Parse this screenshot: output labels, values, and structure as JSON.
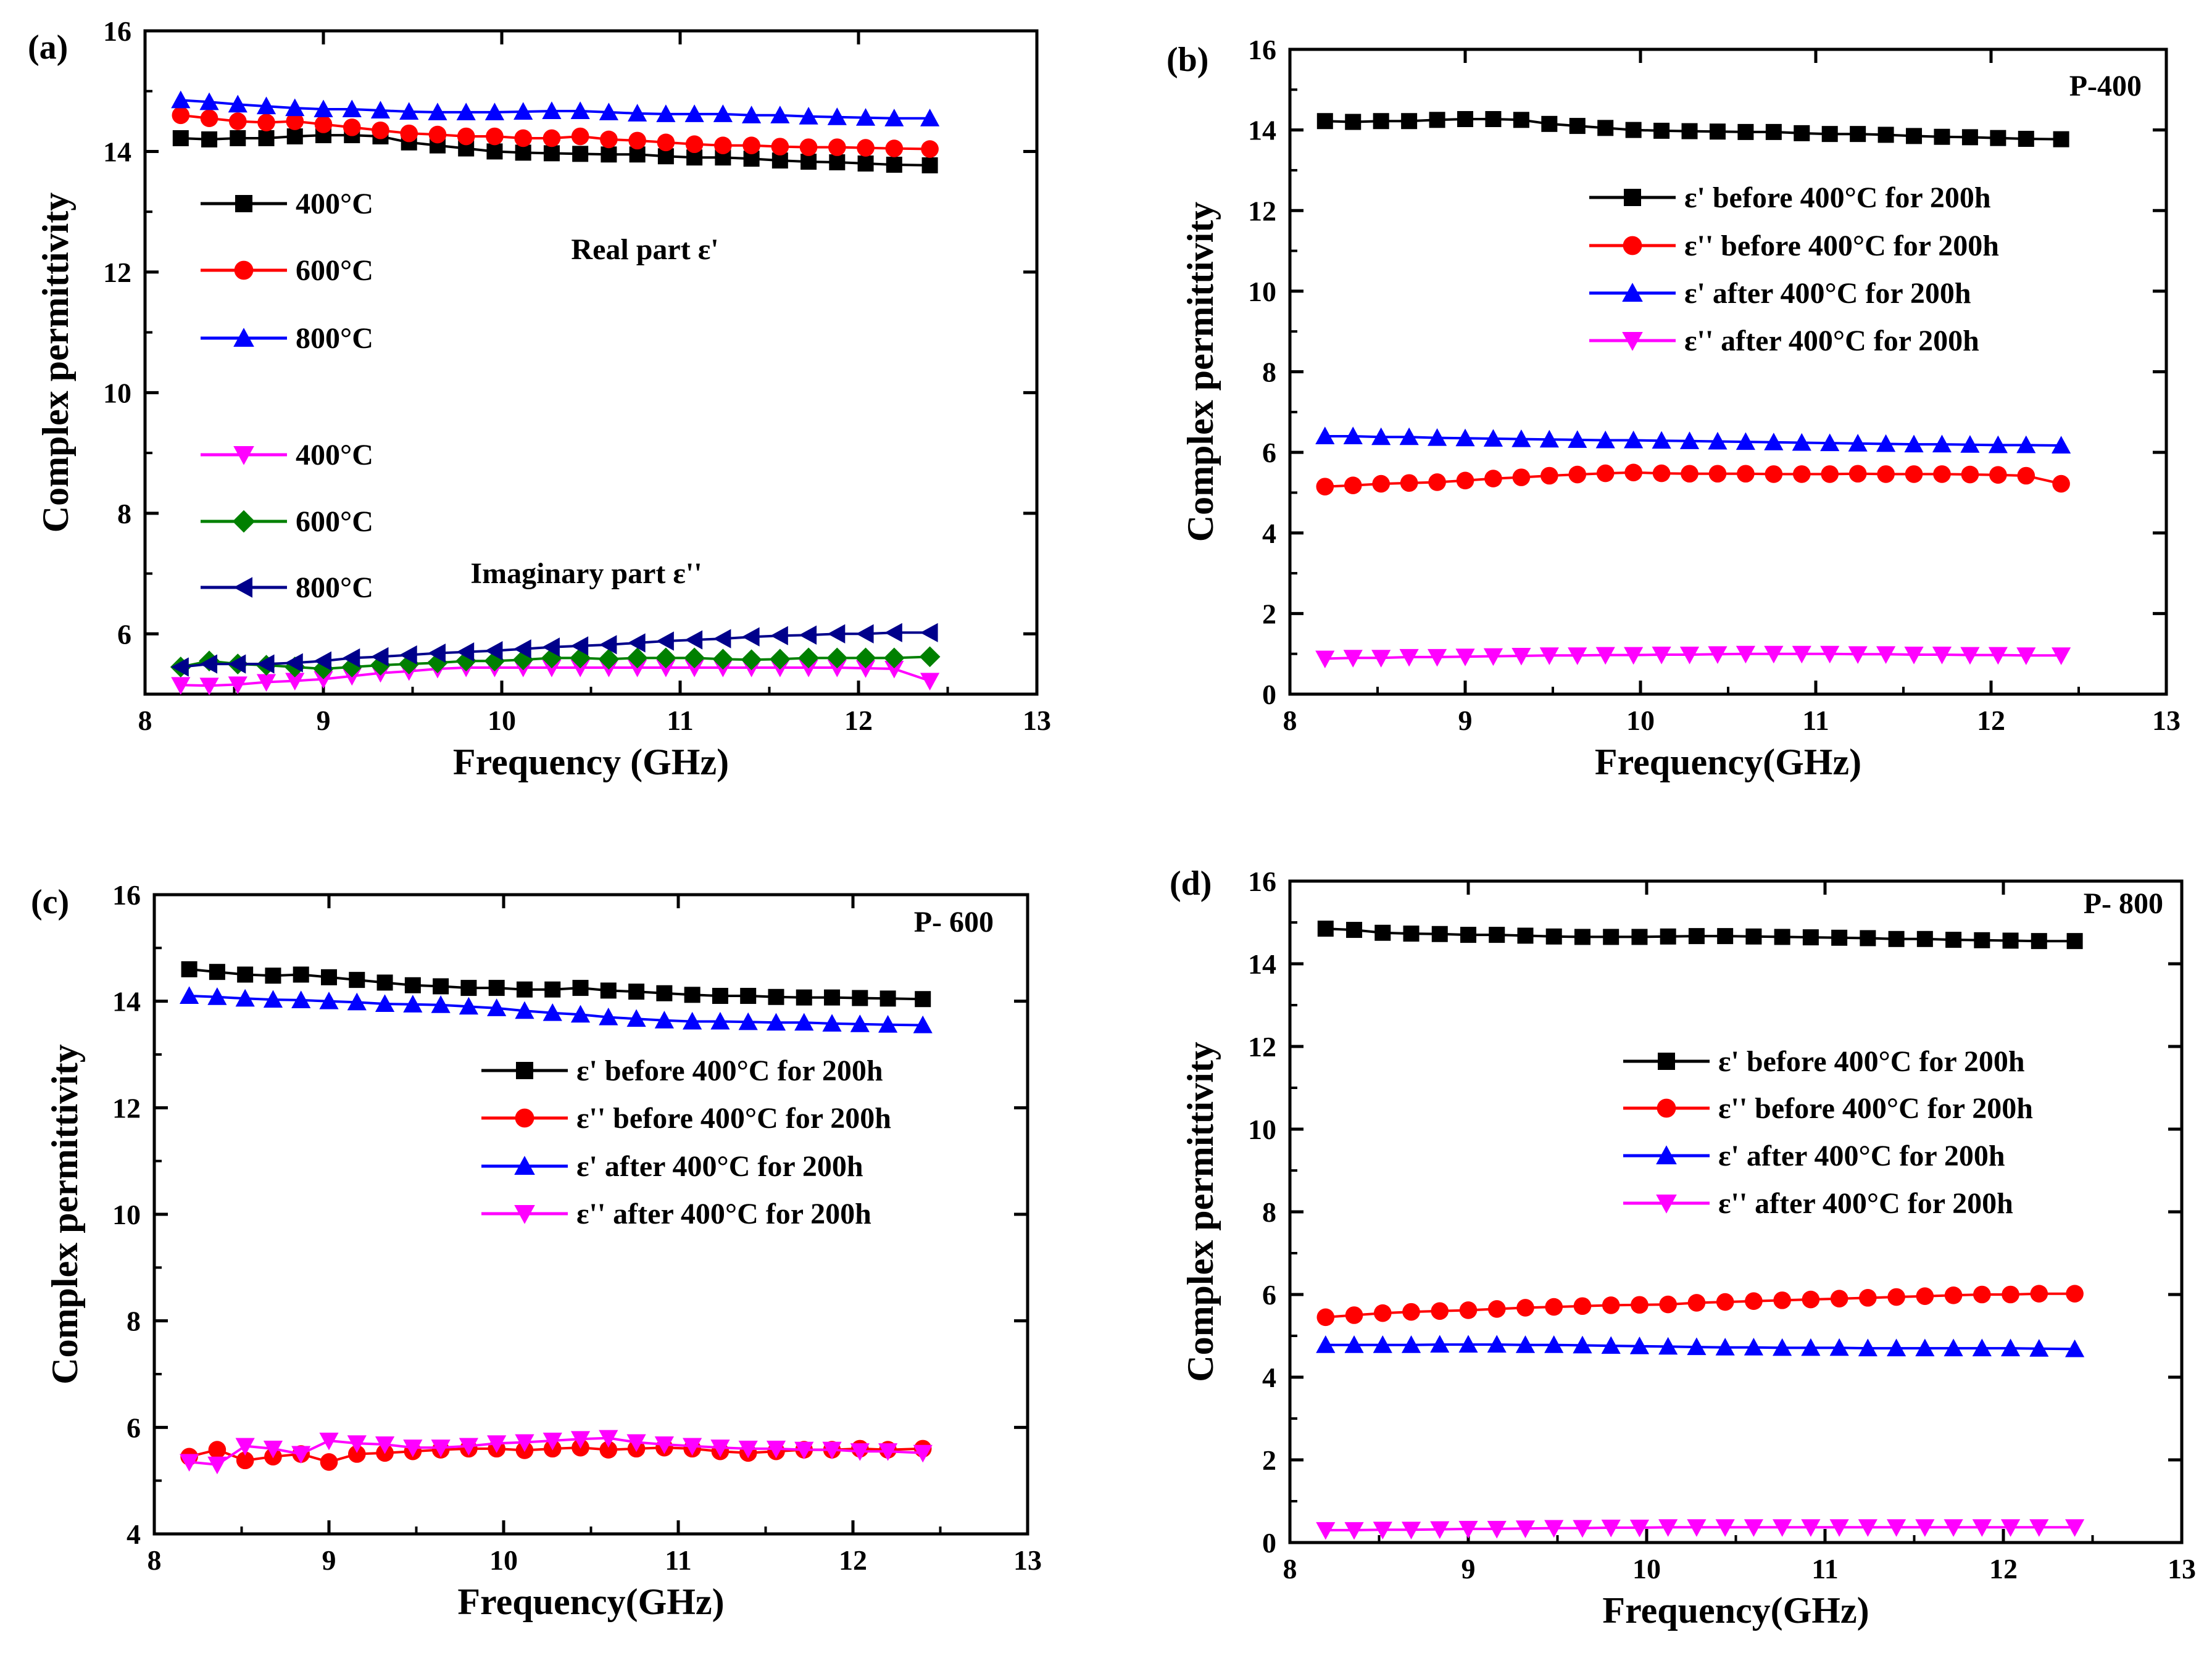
{
  "chart_data": [
    {
      "type": "line",
      "panel": "(a)",
      "xlabel": "Frequency (GHz)",
      "ylabel": "Complex permittivity",
      "xlim": [
        8,
        13
      ],
      "ylim": [
        5,
        16
      ],
      "xticks": [
        8,
        9,
        10,
        11,
        12,
        13
      ],
      "yticks": [
        6,
        8,
        10,
        12,
        14,
        16
      ],
      "annotations": [
        "Real part ε'",
        "Imaginary part ε''"
      ],
      "x": [
        8.2,
        8.36,
        8.52,
        8.68,
        8.84,
        9.0,
        9.16,
        9.32,
        9.48,
        9.64,
        9.8,
        9.96,
        10.12,
        10.28,
        10.44,
        10.6,
        10.76,
        10.92,
        11.08,
        11.24,
        11.4,
        11.56,
        11.72,
        11.88,
        12.04,
        12.2,
        12.4
      ],
      "series": [
        {
          "name": "400°C",
          "color": "#000000",
          "marker": "square",
          "values": [
            14.22,
            14.2,
            14.22,
            14.22,
            14.25,
            14.27,
            14.27,
            14.25,
            14.15,
            14.1,
            14.05,
            14.0,
            13.98,
            13.97,
            13.96,
            13.95,
            13.95,
            13.92,
            13.9,
            13.9,
            13.88,
            13.85,
            13.83,
            13.82,
            13.8,
            13.78,
            13.77
          ]
        },
        {
          "name": "600°C",
          "color": "#ff0000",
          "marker": "circle",
          "values": [
            14.6,
            14.55,
            14.5,
            14.48,
            14.5,
            14.45,
            14.4,
            14.35,
            14.3,
            14.28,
            14.25,
            14.25,
            14.22,
            14.22,
            14.25,
            14.2,
            14.18,
            14.15,
            14.12,
            14.1,
            14.1,
            14.08,
            14.07,
            14.07,
            14.06,
            14.05,
            14.04
          ]
        },
        {
          "name": "800°C",
          "color": "#0000ff",
          "marker": "triangle-up",
          "values": [
            14.85,
            14.82,
            14.78,
            14.75,
            14.72,
            14.7,
            14.7,
            14.68,
            14.66,
            14.65,
            14.65,
            14.65,
            14.66,
            14.67,
            14.67,
            14.65,
            14.63,
            14.62,
            14.62,
            14.62,
            14.6,
            14.6,
            14.58,
            14.57,
            14.56,
            14.55,
            14.55
          ]
        },
        {
          "name": "400°C",
          "color": "#ff00ff",
          "marker": "triangle-down",
          "values": [
            5.15,
            5.14,
            5.16,
            5.2,
            5.22,
            5.25,
            5.3,
            5.35,
            5.38,
            5.42,
            5.44,
            5.44,
            5.44,
            5.44,
            5.44,
            5.44,
            5.44,
            5.44,
            5.44,
            5.44,
            5.44,
            5.44,
            5.44,
            5.44,
            5.43,
            5.42,
            5.22
          ]
        },
        {
          "name": "600°C",
          "color": "#008000",
          "marker": "diamond",
          "values": [
            5.45,
            5.55,
            5.5,
            5.48,
            5.45,
            5.42,
            5.45,
            5.48,
            5.5,
            5.52,
            5.55,
            5.55,
            5.57,
            5.6,
            5.6,
            5.58,
            5.6,
            5.6,
            5.6,
            5.58,
            5.57,
            5.58,
            5.6,
            5.6,
            5.6,
            5.6,
            5.62
          ]
        },
        {
          "name": "800°C",
          "color": "#00008b",
          "marker": "triangle-left",
          "values": [
            5.45,
            5.5,
            5.5,
            5.5,
            5.52,
            5.55,
            5.6,
            5.62,
            5.65,
            5.68,
            5.7,
            5.72,
            5.75,
            5.78,
            5.8,
            5.82,
            5.85,
            5.88,
            5.9,
            5.92,
            5.95,
            5.97,
            5.98,
            6.0,
            6.0,
            6.02,
            6.02
          ]
        }
      ]
    },
    {
      "type": "line",
      "panel": "(b)",
      "xlabel": "Frequency(GHz)",
      "ylabel": "Complex permittivity",
      "xlim": [
        8,
        13
      ],
      "ylim": [
        0,
        16
      ],
      "xticks": [
        8,
        9,
        10,
        11,
        12,
        13
      ],
      "yticks": [
        0,
        2,
        4,
        6,
        8,
        10,
        12,
        14,
        16
      ],
      "annotations": [
        "P-400"
      ],
      "x": [
        8.2,
        8.36,
        8.52,
        8.68,
        8.84,
        9.0,
        9.16,
        9.32,
        9.48,
        9.64,
        9.8,
        9.96,
        10.12,
        10.28,
        10.44,
        10.6,
        10.76,
        10.92,
        11.08,
        11.24,
        11.4,
        11.56,
        11.72,
        11.88,
        12.04,
        12.2,
        12.4
      ],
      "series": [
        {
          "name": "ε' before 400°C for 200h",
          "color": "#000000",
          "marker": "square",
          "values": [
            14.22,
            14.2,
            14.22,
            14.22,
            14.25,
            14.27,
            14.27,
            14.25,
            14.15,
            14.1,
            14.05,
            14.0,
            13.98,
            13.97,
            13.96,
            13.95,
            13.95,
            13.92,
            13.9,
            13.9,
            13.88,
            13.85,
            13.83,
            13.82,
            13.8,
            13.78,
            13.77
          ]
        },
        {
          "name": "ε'' before 400°C for 200h",
          "color": "#ff0000",
          "marker": "circle",
          "values": [
            5.15,
            5.18,
            5.22,
            5.24,
            5.26,
            5.3,
            5.35,
            5.38,
            5.42,
            5.45,
            5.48,
            5.5,
            5.48,
            5.47,
            5.47,
            5.47,
            5.46,
            5.46,
            5.46,
            5.47,
            5.46,
            5.46,
            5.46,
            5.45,
            5.44,
            5.42,
            5.22
          ]
        },
        {
          "name": "ε' after 400°C for 200h",
          "color": "#0000ff",
          "marker": "triangle-up",
          "values": [
            6.4,
            6.4,
            6.38,
            6.38,
            6.36,
            6.35,
            6.34,
            6.33,
            6.32,
            6.31,
            6.3,
            6.3,
            6.29,
            6.28,
            6.27,
            6.26,
            6.25,
            6.24,
            6.23,
            6.22,
            6.21,
            6.2,
            6.2,
            6.19,
            6.18,
            6.18,
            6.17
          ]
        },
        {
          "name": "ε'' after 400°C for 200h",
          "color": "#ff00ff",
          "marker": "triangle-down",
          "values": [
            0.88,
            0.9,
            0.9,
            0.92,
            0.92,
            0.93,
            0.94,
            0.95,
            0.96,
            0.96,
            0.97,
            0.97,
            0.98,
            0.98,
            0.99,
            1.0,
            1.0,
            1.0,
            1.0,
            0.99,
            0.99,
            0.98,
            0.98,
            0.97,
            0.97,
            0.96,
            0.96
          ]
        }
      ]
    },
    {
      "type": "line",
      "panel": "(c)",
      "xlabel": "Frequency(GHz)",
      "ylabel": "Complex permittivity",
      "xlim": [
        8,
        13
      ],
      "ylim": [
        4,
        16
      ],
      "xticks": [
        8,
        9,
        10,
        11,
        12,
        13
      ],
      "yticks": [
        4,
        6,
        8,
        10,
        12,
        14,
        16
      ],
      "annotations": [
        "P- 600"
      ],
      "x": [
        8.2,
        8.36,
        8.52,
        8.68,
        8.84,
        9.0,
        9.16,
        9.32,
        9.48,
        9.64,
        9.8,
        9.96,
        10.12,
        10.28,
        10.44,
        10.6,
        10.76,
        10.92,
        11.08,
        11.24,
        11.4,
        11.56,
        11.72,
        11.88,
        12.04,
        12.2,
        12.4
      ],
      "series": [
        {
          "name": "ε' before 400°C for 200h",
          "color": "#000000",
          "marker": "square",
          "values": [
            14.6,
            14.55,
            14.5,
            14.48,
            14.5,
            14.45,
            14.4,
            14.35,
            14.3,
            14.28,
            14.25,
            14.25,
            14.22,
            14.22,
            14.25,
            14.2,
            14.18,
            14.15,
            14.12,
            14.1,
            14.1,
            14.08,
            14.07,
            14.07,
            14.06,
            14.05,
            14.04
          ]
        },
        {
          "name": "ε'' before 400°C for 200h",
          "color": "#ff0000",
          "marker": "circle",
          "values": [
            5.45,
            5.58,
            5.38,
            5.45,
            5.5,
            5.35,
            5.5,
            5.52,
            5.55,
            5.58,
            5.6,
            5.6,
            5.57,
            5.6,
            5.62,
            5.58,
            5.6,
            5.62,
            5.6,
            5.55,
            5.52,
            5.55,
            5.58,
            5.58,
            5.6,
            5.58,
            5.6
          ]
        },
        {
          "name": "ε' after 400°C for 200h",
          "color": "#0000ff",
          "marker": "triangle-up",
          "values": [
            14.1,
            14.08,
            14.05,
            14.03,
            14.02,
            14.0,
            13.98,
            13.95,
            13.94,
            13.93,
            13.9,
            13.87,
            13.82,
            13.78,
            13.75,
            13.7,
            13.67,
            13.64,
            13.62,
            13.62,
            13.61,
            13.6,
            13.6,
            13.58,
            13.57,
            13.56,
            13.55
          ]
        },
        {
          "name": "ε'' after 400°C for 200h",
          "color": "#ff00ff",
          "marker": "triangle-down",
          "values": [
            5.35,
            5.3,
            5.65,
            5.6,
            5.5,
            5.75,
            5.7,
            5.68,
            5.62,
            5.62,
            5.65,
            5.7,
            5.72,
            5.75,
            5.78,
            5.8,
            5.72,
            5.68,
            5.65,
            5.62,
            5.6,
            5.6,
            5.58,
            5.58,
            5.55,
            5.55,
            5.52
          ]
        }
      ]
    },
    {
      "type": "line",
      "panel": "(d)",
      "xlabel": "Frequency(GHz)",
      "ylabel": "Complex permittivity",
      "xlim": [
        8,
        13
      ],
      "ylim": [
        0,
        16
      ],
      "xticks": [
        8,
        9,
        10,
        11,
        12,
        13
      ],
      "yticks": [
        0,
        2,
        4,
        6,
        8,
        10,
        12,
        14,
        16
      ],
      "annotations": [
        "P- 800"
      ],
      "x": [
        8.2,
        8.36,
        8.52,
        8.68,
        8.84,
        9.0,
        9.16,
        9.32,
        9.48,
        9.64,
        9.8,
        9.96,
        10.12,
        10.28,
        10.44,
        10.6,
        10.76,
        10.92,
        11.08,
        11.24,
        11.4,
        11.56,
        11.72,
        11.88,
        12.04,
        12.2,
        12.4
      ],
      "series": [
        {
          "name": "ε' before 400°C for 200h",
          "color": "#000000",
          "marker": "square",
          "values": [
            14.85,
            14.82,
            14.75,
            14.73,
            14.72,
            14.7,
            14.7,
            14.68,
            14.66,
            14.65,
            14.65,
            14.65,
            14.66,
            14.67,
            14.67,
            14.66,
            14.65,
            14.64,
            14.63,
            14.62,
            14.6,
            14.6,
            14.58,
            14.57,
            14.56,
            14.55,
            14.55
          ]
        },
        {
          "name": "ε'' before 400°C for 200h",
          "color": "#ff0000",
          "marker": "circle",
          "values": [
            5.45,
            5.5,
            5.55,
            5.58,
            5.6,
            5.62,
            5.65,
            5.68,
            5.7,
            5.72,
            5.74,
            5.75,
            5.76,
            5.8,
            5.82,
            5.84,
            5.86,
            5.88,
            5.9,
            5.92,
            5.94,
            5.96,
            5.98,
            6.0,
            6.0,
            6.02,
            6.02
          ]
        },
        {
          "name": "ε' after 400°C for 200h",
          "color": "#0000ff",
          "marker": "triangle-up",
          "values": [
            4.78,
            4.78,
            4.78,
            4.78,
            4.79,
            4.79,
            4.79,
            4.78,
            4.78,
            4.77,
            4.76,
            4.75,
            4.74,
            4.73,
            4.72,
            4.72,
            4.71,
            4.71,
            4.71,
            4.7,
            4.7,
            4.7,
            4.7,
            4.7,
            4.7,
            4.69,
            4.68
          ]
        },
        {
          "name": "ε'' after 400°C for 200h",
          "color": "#ff00ff",
          "marker": "triangle-down",
          "values": [
            0.3,
            0.3,
            0.31,
            0.31,
            0.32,
            0.33,
            0.33,
            0.34,
            0.35,
            0.35,
            0.36,
            0.36,
            0.37,
            0.37,
            0.37,
            0.37,
            0.37,
            0.37,
            0.37,
            0.37,
            0.37,
            0.37,
            0.37,
            0.37,
            0.37,
            0.37,
            0.37
          ]
        }
      ]
    }
  ]
}
